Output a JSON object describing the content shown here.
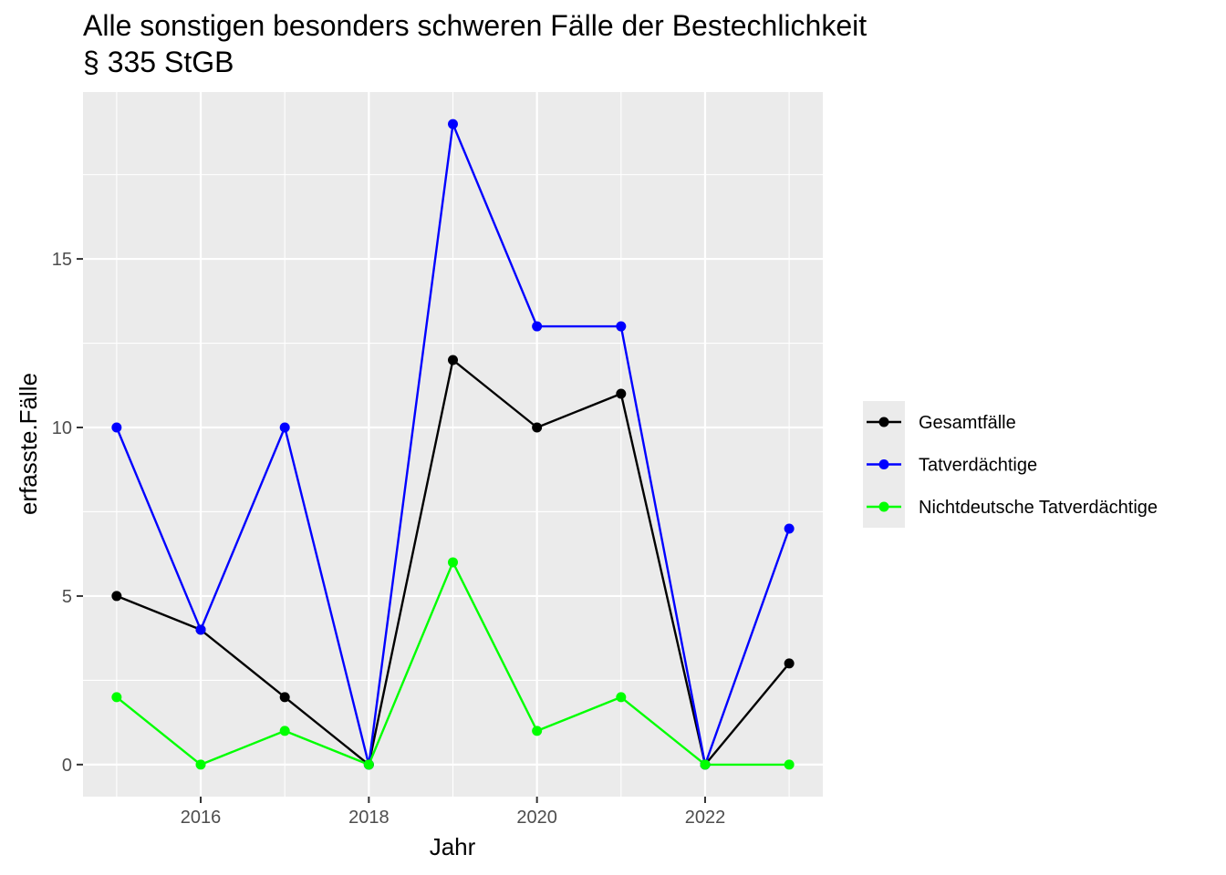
{
  "chart_data": {
    "type": "line",
    "title": "Alle sonstigen besonders schweren Fälle der Bestechlichkeit",
    "subtitle": "§ 335 StGB",
    "xlabel": "Jahr",
    "ylabel": "erfasste.Fälle",
    "x": [
      2015,
      2016,
      2017,
      2018,
      2019,
      2020,
      2021,
      2022,
      2023
    ],
    "xlim": [
      2014.6,
      2023.4
    ],
    "ylim": [
      -0.95,
      19.95
    ],
    "x_ticks": [
      2016,
      2018,
      2020,
      2022
    ],
    "y_ticks": [
      0,
      5,
      10,
      15
    ],
    "grid": true,
    "legend_position": "right",
    "series": [
      {
        "name": "Gesamtfälle",
        "color": "#000000",
        "values": [
          5,
          4,
          2,
          0,
          12,
          10,
          11,
          0,
          3
        ]
      },
      {
        "name": "Tatverdächtige",
        "color": "#0000ff",
        "values": [
          10,
          4,
          10,
          0,
          19,
          13,
          13,
          0,
          7
        ]
      },
      {
        "name": "Nichtdeutsche Tatverdächtige",
        "color": "#00ff00",
        "values": [
          2,
          0,
          1,
          0,
          6,
          1,
          2,
          0,
          0
        ]
      }
    ],
    "panel_background": "#ebebeb",
    "grid_color": "#ffffff"
  }
}
